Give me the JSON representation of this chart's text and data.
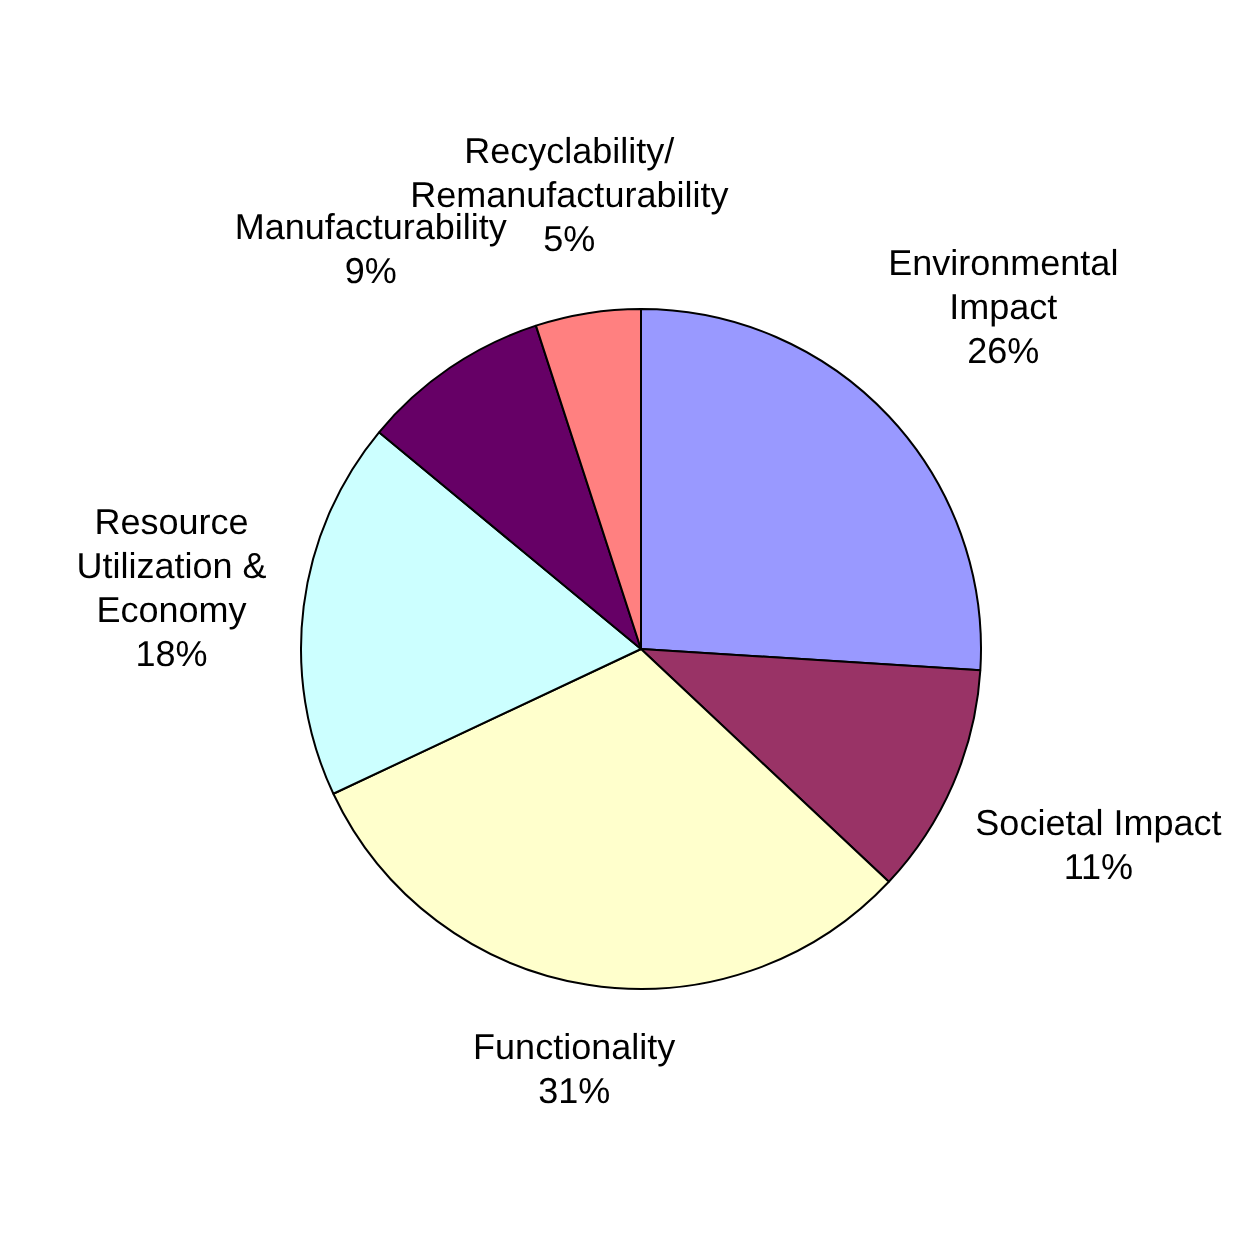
{
  "chart_data": {
    "type": "pie",
    "categories": [
      "Environmental Impact",
      "Societal Impact",
      "Functionality",
      "Resource Utilization & Economy",
      "Manufacturability",
      "Recyclability/Remanufacturability"
    ],
    "values": [
      26,
      11,
      31,
      18,
      9,
      5
    ],
    "colors": [
      "#9999ff",
      "#993366",
      "#ffffcc",
      "#ccffff",
      "#660066",
      "#ff8080"
    ],
    "value_labels": [
      "26%",
      "11%",
      "31%",
      "18%",
      "9%",
      "5%"
    ],
    "legend": false
  }
}
